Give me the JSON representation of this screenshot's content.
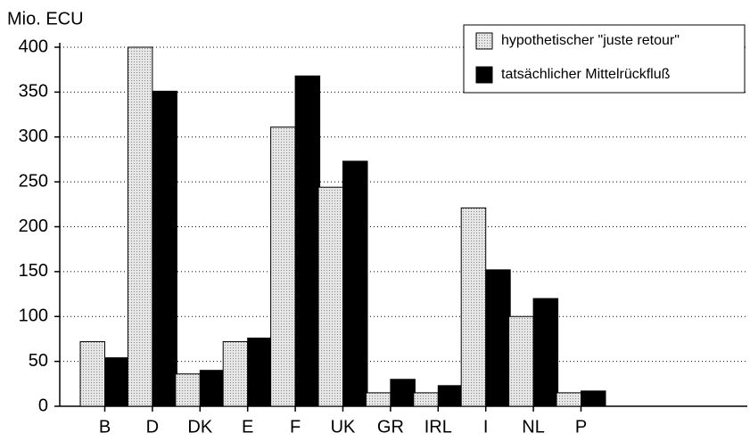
{
  "chart_data": {
    "type": "bar",
    "y_label": "Mio. ECU",
    "categories": [
      "B",
      "D",
      "DK",
      "E",
      "F",
      "UK",
      "GR",
      "IRL",
      "I",
      "NL",
      "P"
    ],
    "series": [
      {
        "name": "hypothetischer \"juste retour\"",
        "color": "#d4d4d4",
        "values": [
          72,
          400,
          36,
          72,
          311,
          244,
          15,
          15,
          221,
          100,
          15
        ]
      },
      {
        "name": "tatsächlicher Mittelrückfluß",
        "color": "#000000",
        "values": [
          54,
          351,
          40,
          76,
          368,
          273,
          30,
          23,
          152,
          120,
          17
        ]
      }
    ],
    "ylim": [
      0,
      400
    ],
    "yticks": [
      0,
      50,
      100,
      150,
      200,
      250,
      300,
      350,
      400
    ],
    "grid": true,
    "legend": "top-right"
  }
}
